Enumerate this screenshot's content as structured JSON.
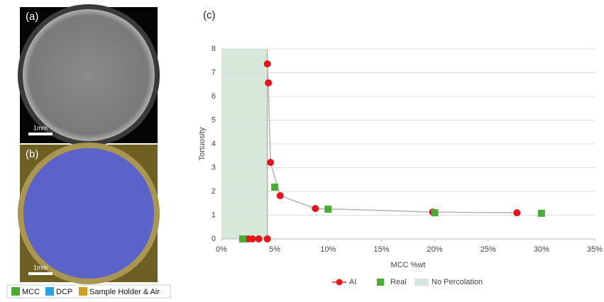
{
  "panels": [
    {
      "label": "(a)",
      "scale_bar": "1mm"
    },
    {
      "label": "(b)",
      "scale_bar": "1mm"
    }
  ],
  "segmentation_legend": [
    "MCC",
    "DCP",
    "Sample Holder & Air"
  ],
  "chart_data": {
    "type": "scatter",
    "panel_label": "(c)",
    "x_label": "MCC %wt",
    "y_label": "Tortuosity",
    "xlim": [
      0,
      35
    ],
    "ylim": [
      0,
      8
    ],
    "xticks": [
      {
        "value": 0,
        "label": "0%"
      },
      {
        "value": 5,
        "label": "5%"
      },
      {
        "value": 10,
        "label": "10%"
      },
      {
        "value": 15,
        "label": "15%"
      },
      {
        "value": 20,
        "label": "20%"
      },
      {
        "value": 25,
        "label": "25%"
      },
      {
        "value": 30,
        "label": "30%"
      },
      {
        "value": 35,
        "label": "35%"
      }
    ],
    "yticks": [
      0,
      1,
      2,
      3,
      4,
      5,
      6,
      7,
      8
    ],
    "grid": true,
    "series": [
      {
        "name": "AI",
        "color": "#e8141c",
        "marker": "circle",
        "line": true,
        "line_color": "#b4b4b4",
        "x": [
          2.5,
          2.9,
          3.5,
          4.3,
          4.3,
          4.4,
          4.6,
          5.5,
          8.8,
          19.8,
          27.7
        ],
        "values": [
          0,
          0,
          0,
          0,
          7.37,
          6.57,
          3.22,
          1.82,
          1.28,
          1.13,
          1.1
        ]
      },
      {
        "name": "Real",
        "color": "#4caa36",
        "marker": "square",
        "line": false,
        "x": [
          2,
          5,
          10,
          20,
          30
        ],
        "values": [
          0,
          2.18,
          1.25,
          1.1,
          1.08
        ]
      }
    ],
    "region": {
      "name": "No Percolation",
      "color": "#d6e8da",
      "x_range": [
        0,
        4.3
      ]
    }
  }
}
